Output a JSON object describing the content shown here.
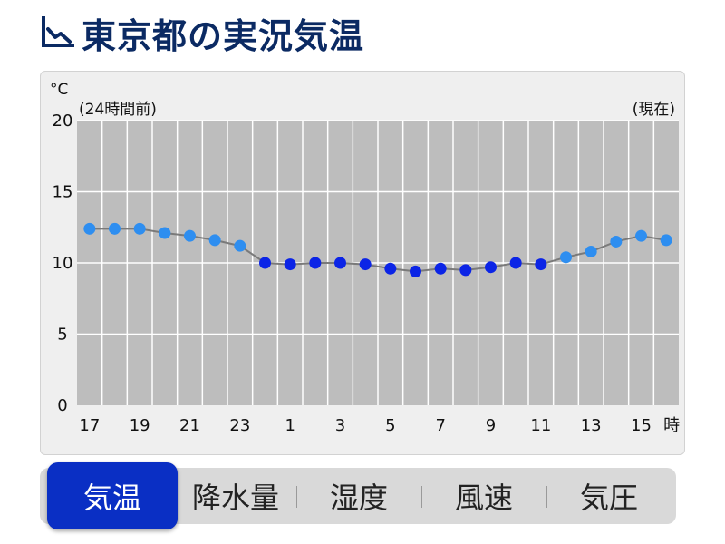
{
  "header": {
    "title": "東京都の実況気温"
  },
  "chart_data": {
    "type": "line",
    "unit": "°C",
    "left_note": "(24時間前)",
    "right_note": "(現在)",
    "ylim": [
      0,
      20
    ],
    "yticks": [
      0,
      5,
      10,
      15,
      20
    ],
    "xtick_labels": [
      "17",
      "19",
      "21",
      "23",
      "1",
      "3",
      "5",
      "7",
      "9",
      "11",
      "13",
      "15"
    ],
    "x_unit_label": "時",
    "x": [
      "17",
      "18",
      "19",
      "20",
      "21",
      "22",
      "23",
      "0",
      "1",
      "2",
      "3",
      "4",
      "5",
      "6",
      "7",
      "8",
      "9",
      "10",
      "11",
      "12",
      "13",
      "14",
      "15",
      "16"
    ],
    "series": [
      {
        "values": [
          12.4,
          12.4,
          12.4,
          12.1,
          11.9,
          11.6,
          11.2,
          10.0,
          9.9,
          10.0,
          10.0,
          9.9,
          9.6,
          9.4,
          9.6,
          9.5,
          9.7,
          10.0,
          9.9,
          10.4,
          10.8,
          11.5,
          11.9,
          11.6
        ]
      }
    ],
    "grid": true,
    "colors": {
      "plot_bg": "#bdbdbd",
      "grid": "#ffffff",
      "line": "#7a7a7a",
      "point_cool": "#0b24e6",
      "point_warm": "#2e8ef0"
    }
  },
  "tabs": [
    {
      "label": "気温",
      "active": true
    },
    {
      "label": "降水量",
      "active": false
    },
    {
      "label": "湿度",
      "active": false
    },
    {
      "label": "風速",
      "active": false
    },
    {
      "label": "気圧",
      "active": false
    }
  ],
  "colors": {
    "title": "#0b2a63",
    "active_tab": "#0a2fc4"
  }
}
